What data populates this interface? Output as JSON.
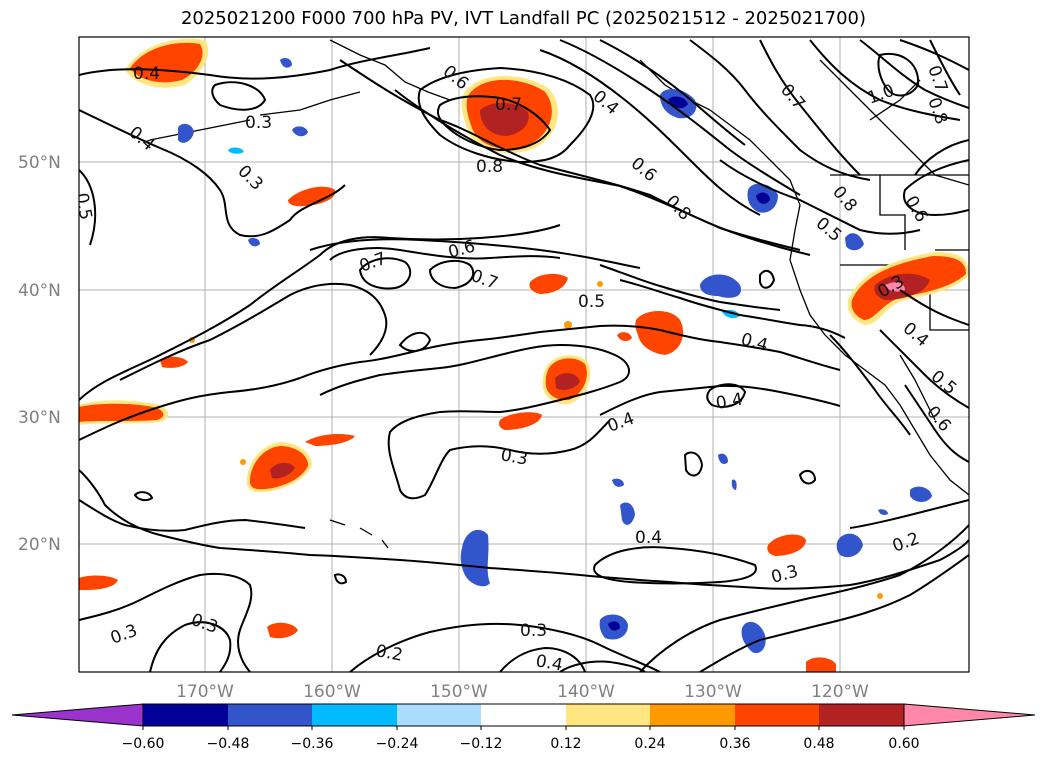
{
  "title": "2025021200 F000 700 hPa PV, IVT Landfall PC (2025021512 - 2025021700)",
  "lat_labels": [
    "50°N",
    "40°N",
    "30°N",
    "20°N"
  ],
  "lon_labels": [
    "170°W",
    "160°W",
    "150°W",
    "140°W",
    "130°W",
    "120°W"
  ],
  "contour_labels": [
    "0.4",
    "0.3",
    "0.4",
    "0.3",
    "0.5",
    "0.6",
    "0.7",
    "0.8",
    "0.4",
    "0.6",
    "0.8",
    "0.7",
    "1.0",
    "0.7",
    "0.8",
    "0.5",
    "0.6",
    "0.8",
    "0.7",
    "0.6",
    "0.7",
    "0.5",
    "0.4",
    "0.3",
    "0.4",
    "0.5",
    "0.6",
    "0.4",
    "0.3",
    "0.4",
    "0.4",
    "0.3",
    "0.2",
    "0.3",
    "0.2",
    "0.3",
    "0.4",
    "0.3"
  ],
  "colorbar": {
    "ticks": [
      "−0.60",
      "−0.48",
      "−0.36",
      "−0.24",
      "−0.12",
      "0.12",
      "0.24",
      "0.36",
      "0.48",
      "0.60"
    ],
    "colors": [
      "#9933cc",
      "#000099",
      "#3355cc",
      "#00bbff",
      "#aaddff",
      "#ffffff",
      "#ffe680",
      "#ff9900",
      "#ff4400",
      "#b22222",
      "#ff88aa"
    ]
  },
  "colors": {
    "pos_dark": "#b22222",
    "pos_mid": "#ff4400",
    "pos_orange": "#ff9900",
    "pos_yellow": "#ffe680",
    "pos_pink": "#ff88aa",
    "neg_navy": "#000099",
    "neg_blue": "#3355cc",
    "neg_cyan": "#00bbff",
    "neg_light": "#aaddff"
  }
}
